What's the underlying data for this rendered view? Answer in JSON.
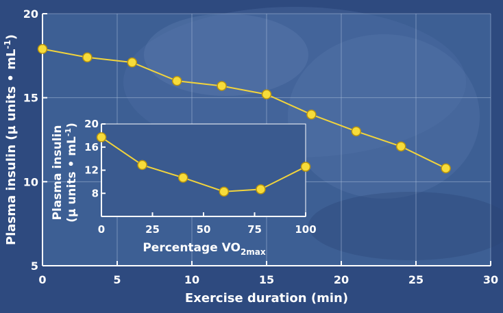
{
  "colors": {
    "background": "#2e4a7f",
    "plot_area": "#3d5f94",
    "inset_area": "#3a5a8f",
    "grid": "#a9bcd9",
    "axis": "#ffffff",
    "line": "#f2d43c",
    "marker_fill": "#f7dc3a",
    "marker_stroke": "#b8940f",
    "text": "#ffffff"
  },
  "chart_data": [
    {
      "id": "main",
      "type": "line",
      "xlabel": "Exercise duration (min)",
      "ylabel_main": "Plasma insulin (µ units • mL",
      "ylabel_sup": "-1",
      "ylabel_close": ")",
      "xlim": [
        0,
        30
      ],
      "ylim": [
        5,
        20
      ],
      "xticks": [
        0,
        5,
        10,
        15,
        20,
        25,
        30
      ],
      "yticks": [
        5,
        10,
        15,
        20
      ],
      "grid": true,
      "x": [
        0,
        3,
        6,
        9,
        12,
        15,
        18,
        21,
        24,
        27
      ],
      "y": [
        17.9,
        17.4,
        17.1,
        16.0,
        15.7,
        15.2,
        14.0,
        13.0,
        12.1,
        10.8
      ]
    },
    {
      "id": "inset",
      "type": "line",
      "xlabel_main": "Percentage VO",
      "xlabel_sub": "2max",
      "ylabel_line1": "Plasma insulin",
      "ylabel_line2_main": "(µ units • mL",
      "ylabel_line2_sup": "-1",
      "ylabel_line2_close": ")",
      "xlim": [
        0,
        100
      ],
      "ylim": [
        4,
        20
      ],
      "xticks": [
        0,
        25,
        50,
        75,
        100
      ],
      "yticks": [
        8,
        12,
        16,
        20
      ],
      "grid": false,
      "x": [
        0,
        20,
        40,
        60,
        78,
        100
      ],
      "y": [
        17.7,
        12.9,
        10.7,
        8.3,
        8.7,
        12.6
      ]
    }
  ]
}
